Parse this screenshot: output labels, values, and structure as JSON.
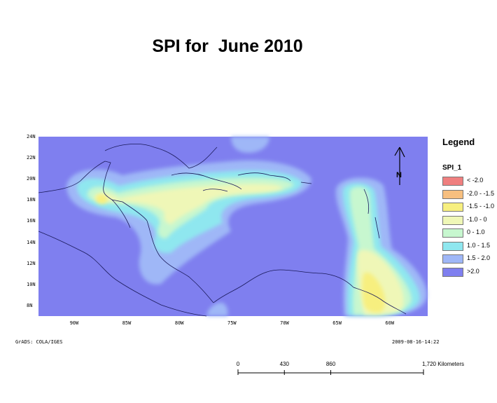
{
  "title": "SPI for  June 2010",
  "map": {
    "lat_labels": [
      {
        "text": "24N",
        "lat": 24
      },
      {
        "text": "22N",
        "lat": 22
      },
      {
        "text": "20N",
        "lat": 20
      },
      {
        "text": "18N",
        "lat": 18
      },
      {
        "text": "16N",
        "lat": 16
      },
      {
        "text": "14N",
        "lat": 14
      },
      {
        "text": "12N",
        "lat": 12
      },
      {
        "text": "10N",
        "lat": 10
      },
      {
        "text": "8N",
        "lat": 8
      }
    ],
    "lon_labels": [
      {
        "text": "90W",
        "lon": -90
      },
      {
        "text": "85W",
        "lon": -85
      },
      {
        "text": "80W",
        "lon": -80
      },
      {
        "text": "75W",
        "lon": -75
      },
      {
        "text": "70W",
        "lon": -70
      },
      {
        "text": "65W",
        "lon": -65
      },
      {
        "text": "60W",
        "lon": -60
      }
    ],
    "lon_range": [
      -93.5,
      -56.5
    ],
    "lat_range": [
      7,
      24
    ],
    "footer_left": "GrADS: COLA/IGES",
    "footer_right": "2009-08-16-14:22",
    "north_arrow_letter": "N"
  },
  "legend": {
    "title": "Legend",
    "field": "SPI_1",
    "items": [
      {
        "label": "< -2.0",
        "color": "#ef7f7f"
      },
      {
        "label": "-2.0 - -1.5",
        "color": "#f7bf7f"
      },
      {
        "label": "-1.5 -  -1.0",
        "color": "#f7ef7f"
      },
      {
        "label": "-1.0 - 0",
        "color": "#eff7b7"
      },
      {
        "label": "0 - 1.0",
        "color": "#c7f7cf"
      },
      {
        "label": "1.0 - 1.5",
        "color": "#8fe7ef"
      },
      {
        "label": "1.5 - 2.0",
        "color": "#9fb7f7"
      },
      {
        "label": ">2.0",
        "color": "#7f7fef"
      }
    ]
  },
  "scale_bar": {
    "labels": [
      {
        "text": "0",
        "km": 0
      },
      {
        "text": "430",
        "km": 430
      },
      {
        "text": "860",
        "km": 860
      },
      {
        "text": "1,720 Kilometers",
        "km": 1720
      }
    ]
  }
}
